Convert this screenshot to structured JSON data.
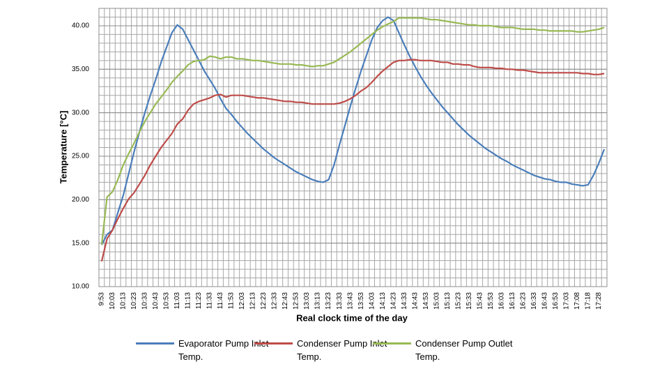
{
  "chart_data": {
    "type": "line",
    "x_label": "Real clock time of the day",
    "y_label": "Temperature [°C]",
    "categories": [
      "9:53",
      null,
      "10:03",
      null,
      "10:13",
      null,
      "10:23",
      null,
      "10:33",
      null,
      "10:43",
      null,
      "10:53",
      null,
      "11:03",
      null,
      "11:13",
      null,
      "11:23",
      null,
      "11:33",
      null,
      "11:43",
      null,
      "11:53",
      null,
      "12:03",
      null,
      "12:13",
      null,
      "12:23",
      null,
      "12:33",
      null,
      "12:43",
      null,
      "12:53",
      null,
      "13:03",
      null,
      "13:13",
      null,
      "13:23",
      null,
      "13:33",
      null,
      "13:43",
      null,
      "13:53",
      null,
      "14:03",
      null,
      "14:13",
      null,
      "14:23",
      null,
      "14:33",
      null,
      "14:43",
      null,
      "14:53",
      null,
      "15:03",
      null,
      "15:13",
      null,
      "15:23",
      null,
      "15:33",
      null,
      "15:43",
      null,
      "15:53",
      null,
      "16:03",
      null,
      "16:13",
      null,
      "16:23",
      null,
      "16:33",
      null,
      "16:43",
      null,
      "16:53",
      null,
      "17:03",
      null,
      "17:08",
      null,
      "17:18",
      null,
      "17:28",
      null
    ],
    "series": [
      {
        "name": "Evaporator Pump Inlet Temp.",
        "color": "#4a7ebb",
        "values": [
          14.8,
          16.0,
          16.5,
          18.5,
          20.5,
          23.0,
          25.5,
          27.8,
          30.0,
          32.0,
          33.8,
          35.8,
          37.5,
          39.2,
          40.1,
          39.6,
          38.4,
          37.2,
          36.0,
          34.8,
          33.8,
          32.8,
          31.6,
          30.5,
          29.8,
          29.0,
          28.3,
          27.6,
          27.0,
          26.4,
          25.8,
          25.3,
          24.8,
          24.4,
          24.0,
          23.6,
          23.2,
          22.9,
          22.6,
          22.3,
          22.1,
          22.0,
          22.3,
          24.0,
          26.3,
          28.5,
          30.7,
          32.8,
          34.8,
          36.6,
          38.4,
          39.8,
          40.6,
          41.0,
          40.6,
          39.2,
          37.8,
          36.5,
          35.3,
          34.2,
          33.2,
          32.3,
          31.5,
          30.7,
          30.0,
          29.3,
          28.6,
          28.0,
          27.4,
          26.9,
          26.4,
          25.9,
          25.5,
          25.1,
          24.7,
          24.4,
          24.0,
          23.7,
          23.4,
          23.1,
          22.8,
          22.6,
          22.4,
          22.3,
          22.1,
          22.0,
          22.0,
          21.8,
          21.7,
          21.6,
          21.7,
          22.8,
          24.2,
          25.8
        ]
      },
      {
        "name": "Condenser Pump Inlet Temp.",
        "color": "#be4b48",
        "values": [
          12.9,
          15.5,
          16.5,
          17.8,
          19.0,
          20.1,
          20.8,
          21.8,
          22.8,
          24.0,
          25.0,
          26.0,
          26.8,
          27.6,
          28.7,
          29.3,
          30.3,
          31.0,
          31.3,
          31.5,
          31.7,
          32.0,
          32.1,
          31.8,
          32.0,
          32.0,
          32.0,
          31.9,
          31.8,
          31.7,
          31.7,
          31.6,
          31.5,
          31.4,
          31.3,
          31.3,
          31.2,
          31.2,
          31.1,
          31.0,
          31.0,
          31.0,
          31.0,
          31.0,
          31.1,
          31.3,
          31.6,
          32.0,
          32.5,
          32.9,
          33.5,
          34.2,
          34.8,
          35.3,
          35.8,
          36.0,
          36.0,
          36.1,
          36.1,
          36.0,
          36.0,
          36.0,
          35.9,
          35.8,
          35.8,
          35.6,
          35.6,
          35.5,
          35.5,
          35.3,
          35.2,
          35.2,
          35.2,
          35.1,
          35.1,
          35.0,
          35.0,
          34.9,
          34.9,
          34.8,
          34.7,
          34.6,
          34.6,
          34.6,
          34.6,
          34.6,
          34.6,
          34.6,
          34.6,
          34.5,
          34.5,
          34.4,
          34.4,
          34.5
        ]
      },
      {
        "name": "Condenser Pump Outlet Temp.",
        "color": "#98b954",
        "values": [
          14.8,
          20.3,
          20.9,
          22.3,
          24.0,
          25.3,
          26.5,
          27.8,
          29.0,
          30.0,
          31.0,
          31.8,
          32.6,
          33.5,
          34.2,
          34.8,
          35.5,
          35.9,
          36.0,
          36.1,
          36.5,
          36.4,
          36.2,
          36.4,
          36.4,
          36.2,
          36.2,
          36.1,
          36.0,
          36.0,
          35.9,
          35.8,
          35.7,
          35.6,
          35.6,
          35.6,
          35.5,
          35.5,
          35.4,
          35.3,
          35.4,
          35.4,
          35.6,
          35.8,
          36.2,
          36.6,
          37.0,
          37.5,
          38.0,
          38.5,
          39.0,
          39.5,
          39.9,
          40.2,
          40.5,
          40.9,
          40.9,
          40.9,
          40.9,
          40.9,
          40.8,
          40.7,
          40.7,
          40.6,
          40.5,
          40.4,
          40.3,
          40.2,
          40.1,
          40.1,
          40.0,
          40.0,
          40.0,
          39.9,
          39.8,
          39.8,
          39.8,
          39.7,
          39.6,
          39.6,
          39.6,
          39.5,
          39.5,
          39.4,
          39.4,
          39.4,
          39.4,
          39.4,
          39.3,
          39.3,
          39.4,
          39.5,
          39.6,
          39.8
        ]
      }
    ],
    "ylim": [
      10,
      42
    ],
    "yticks": [
      {
        "value": 10,
        "label": "10.00"
      },
      {
        "value": 15,
        "label": "15.00"
      },
      {
        "value": 20,
        "label": "20.00"
      },
      {
        "value": 25,
        "label": "25.00"
      },
      {
        "value": 30,
        "label": "30.00"
      },
      {
        "value": 35,
        "label": "35.00"
      },
      {
        "value": 40,
        "label": "40.00"
      }
    ],
    "grid": true,
    "legend": "bottom"
  }
}
